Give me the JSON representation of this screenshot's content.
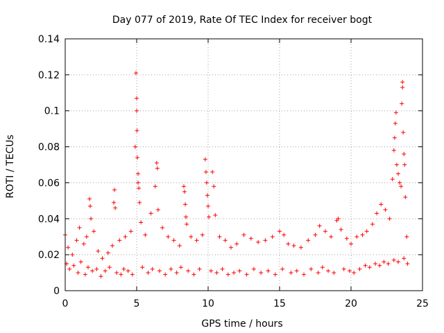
{
  "chart_data": {
    "type": "scatter",
    "title": "Day 077 of 2019, Rate Of TEC Index for receiver bogt",
    "xlabel": "GPS time / hours",
    "ylabel": "ROTI / TECUs",
    "xlim": [
      0,
      25
    ],
    "ylim": [
      0,
      0.14
    ],
    "xticks": [
      0,
      5,
      10,
      15,
      20,
      25
    ],
    "yticks": [
      0,
      0.02,
      0.04,
      0.06,
      0.08,
      0.1,
      0.12,
      0.14
    ],
    "xtick_labels": [
      "0",
      "5",
      "10",
      "15",
      "20",
      "25"
    ],
    "ytick_labels": [
      "0",
      "0.02",
      "0.04",
      "0.06",
      "0.08",
      "0.1",
      "0.12",
      "0.14"
    ],
    "grid": true,
    "marker": "+",
    "color": "#ff0000",
    "series": [
      {
        "name": "ROTI",
        "points": [
          [
            0.0,
            0.031
          ],
          [
            0.2,
            0.024
          ],
          [
            0.5,
            0.02
          ],
          [
            0.8,
            0.028
          ],
          [
            1.0,
            0.035
          ],
          [
            1.3,
            0.026
          ],
          [
            1.5,
            0.03
          ],
          [
            1.7,
            0.051
          ],
          [
            1.75,
            0.047
          ],
          [
            1.8,
            0.04
          ],
          [
            2.0,
            0.033
          ],
          [
            2.3,
            0.022
          ],
          [
            2.6,
            0.018
          ],
          [
            3.0,
            0.021
          ],
          [
            3.3,
            0.025
          ],
          [
            3.4,
            0.049
          ],
          [
            3.45,
            0.056
          ],
          [
            3.5,
            0.046
          ],
          [
            3.8,
            0.028
          ],
          [
            4.2,
            0.03
          ],
          [
            4.6,
            0.033
          ],
          [
            4.9,
            0.08
          ],
          [
            4.95,
            0.121
          ],
          [
            5.0,
            0.107
          ],
          [
            5.0,
            0.1
          ],
          [
            5.02,
            0.089
          ],
          [
            5.05,
            0.074
          ],
          [
            5.1,
            0.065
          ],
          [
            5.1,
            0.06
          ],
          [
            5.15,
            0.057
          ],
          [
            5.2,
            0.049
          ],
          [
            5.3,
            0.038
          ],
          [
            5.6,
            0.031
          ],
          [
            6.0,
            0.043
          ],
          [
            6.3,
            0.058
          ],
          [
            6.4,
            0.071
          ],
          [
            6.45,
            0.068
          ],
          [
            6.5,
            0.045
          ],
          [
            6.8,
            0.035
          ],
          [
            7.2,
            0.03
          ],
          [
            7.6,
            0.028
          ],
          [
            8.0,
            0.025
          ],
          [
            8.3,
            0.058
          ],
          [
            8.35,
            0.055
          ],
          [
            8.4,
            0.048
          ],
          [
            8.45,
            0.041
          ],
          [
            8.5,
            0.037
          ],
          [
            8.8,
            0.03
          ],
          [
            9.2,
            0.028
          ],
          [
            9.6,
            0.031
          ],
          [
            9.8,
            0.073
          ],
          [
            9.85,
            0.066
          ],
          [
            9.9,
            0.06
          ],
          [
            9.95,
            0.053
          ],
          [
            10.0,
            0.047
          ],
          [
            10.05,
            0.041
          ],
          [
            10.3,
            0.066
          ],
          [
            10.4,
            0.058
          ],
          [
            10.5,
            0.042
          ],
          [
            10.8,
            0.03
          ],
          [
            11.2,
            0.028
          ],
          [
            11.6,
            0.024
          ],
          [
            12.0,
            0.026
          ],
          [
            12.5,
            0.031
          ],
          [
            13.0,
            0.029
          ],
          [
            13.5,
            0.027
          ],
          [
            14.0,
            0.028
          ],
          [
            14.5,
            0.03
          ],
          [
            15.0,
            0.033
          ],
          [
            15.3,
            0.031
          ],
          [
            15.6,
            0.026
          ],
          [
            16.0,
            0.025
          ],
          [
            16.5,
            0.024
          ],
          [
            17.0,
            0.028
          ],
          [
            17.5,
            0.031
          ],
          [
            17.8,
            0.036
          ],
          [
            18.2,
            0.033
          ],
          [
            18.6,
            0.03
          ],
          [
            19.0,
            0.039
          ],
          [
            19.1,
            0.04
          ],
          [
            19.3,
            0.034
          ],
          [
            19.7,
            0.029
          ],
          [
            20.0,
            0.026
          ],
          [
            20.4,
            0.03
          ],
          [
            20.8,
            0.031
          ],
          [
            21.1,
            0.033
          ],
          [
            21.5,
            0.037
          ],
          [
            21.8,
            0.043
          ],
          [
            22.1,
            0.048
          ],
          [
            22.4,
            0.045
          ],
          [
            22.7,
            0.04
          ],
          [
            22.9,
            0.062
          ],
          [
            23.0,
            0.078
          ],
          [
            23.05,
            0.085
          ],
          [
            23.1,
            0.093
          ],
          [
            23.15,
            0.099
          ],
          [
            23.2,
            0.07
          ],
          [
            23.3,
            0.065
          ],
          [
            23.4,
            0.06
          ],
          [
            23.5,
            0.058
          ],
          [
            23.55,
            0.104
          ],
          [
            23.6,
            0.116
          ],
          [
            23.6,
            0.113
          ],
          [
            23.65,
            0.088
          ],
          [
            23.7,
            0.076
          ],
          [
            23.75,
            0.07
          ],
          [
            23.8,
            0.052
          ],
          [
            23.9,
            0.03
          ],
          [
            0.1,
            0.015
          ],
          [
            0.3,
            0.012
          ],
          [
            0.6,
            0.014
          ],
          [
            0.9,
            0.01
          ],
          [
            1.1,
            0.016
          ],
          [
            1.4,
            0.009
          ],
          [
            1.6,
            0.013
          ],
          [
            1.9,
            0.011
          ],
          [
            2.2,
            0.012
          ],
          [
            2.5,
            0.008
          ],
          [
            2.8,
            0.011
          ],
          [
            3.1,
            0.013
          ],
          [
            3.6,
            0.01
          ],
          [
            3.9,
            0.009
          ],
          [
            4.1,
            0.012
          ],
          [
            4.4,
            0.011
          ],
          [
            4.7,
            0.009
          ],
          [
            5.4,
            0.013
          ],
          [
            5.8,
            0.01
          ],
          [
            6.1,
            0.012
          ],
          [
            6.6,
            0.011
          ],
          [
            7.0,
            0.009
          ],
          [
            7.4,
            0.012
          ],
          [
            7.8,
            0.01
          ],
          [
            8.1,
            0.013
          ],
          [
            8.6,
            0.011
          ],
          [
            9.0,
            0.009
          ],
          [
            9.4,
            0.012
          ],
          [
            10.2,
            0.011
          ],
          [
            10.6,
            0.01
          ],
          [
            11.0,
            0.012
          ],
          [
            11.4,
            0.009
          ],
          [
            11.8,
            0.01
          ],
          [
            12.2,
            0.011
          ],
          [
            12.7,
            0.009
          ],
          [
            13.2,
            0.012
          ],
          [
            13.7,
            0.01
          ],
          [
            14.2,
            0.011
          ],
          [
            14.7,
            0.009
          ],
          [
            15.2,
            0.012
          ],
          [
            15.8,
            0.01
          ],
          [
            16.2,
            0.011
          ],
          [
            16.7,
            0.009
          ],
          [
            17.2,
            0.012
          ],
          [
            17.7,
            0.01
          ],
          [
            18.0,
            0.013
          ],
          [
            18.4,
            0.011
          ],
          [
            18.8,
            0.01
          ],
          [
            19.5,
            0.012
          ],
          [
            19.9,
            0.011
          ],
          [
            20.2,
            0.01
          ],
          [
            20.6,
            0.012
          ],
          [
            21.0,
            0.014
          ],
          [
            21.3,
            0.013
          ],
          [
            21.7,
            0.015
          ],
          [
            22.0,
            0.014
          ],
          [
            22.3,
            0.016
          ],
          [
            22.6,
            0.015
          ],
          [
            23.0,
            0.017
          ],
          [
            23.3,
            0.016
          ],
          [
            23.7,
            0.018
          ],
          [
            23.95,
            0.015
          ]
        ]
      }
    ]
  }
}
